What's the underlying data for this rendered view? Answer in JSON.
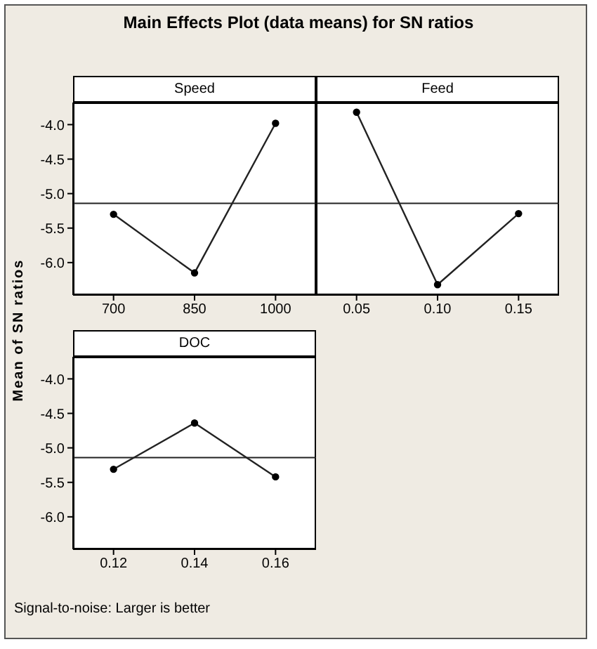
{
  "chart_data": [
    {
      "type": "line",
      "title": "Main Effects Plot (data means) for SN ratios",
      "subtitle": "Speed",
      "ylabel": "Mean of SN ratios",
      "categories": [
        "700",
        "850",
        "1000"
      ],
      "series": [
        {
          "color": "#222222",
          "values": [
            -5.3,
            -6.15,
            -3.98
          ]
        }
      ],
      "ylim": [
        -6.47,
        -3.68
      ],
      "yticks": [
        {
          "value": -4,
          "label": "-4.0"
        },
        {
          "value": -4.5,
          "label": "-4.5"
        },
        {
          "value": -5,
          "label": "-5.0"
        },
        {
          "value": -5.5,
          "label": "-5.5"
        },
        {
          "value": -6,
          "label": "-6.0"
        }
      ],
      "ref_lines": [
        {
          "axis": "y",
          "value": -5.14,
          "color": "#222222"
        }
      ],
      "marker": "circle",
      "grid": false,
      "legend": false
    },
    {
      "type": "line",
      "subtitle": "Feed",
      "categories": [
        "0.05",
        "0.10",
        "0.15"
      ],
      "series": [
        {
          "color": "#222222",
          "values": [
            -3.82,
            -6.32,
            -5.29
          ]
        }
      ],
      "ylim": [
        -6.47,
        -3.68
      ],
      "ref_lines": [
        {
          "axis": "y",
          "value": -5.14,
          "color": "#222222"
        }
      ],
      "marker": "circle",
      "grid": false,
      "legend": false,
      "tick_labels": "x"
    },
    {
      "type": "line",
      "subtitle": "DOC",
      "categories": [
        "0.12",
        "0.14",
        "0.16"
      ],
      "series": [
        {
          "color": "#222222",
          "values": [
            -5.31,
            -4.64,
            -5.42
          ]
        }
      ],
      "ylim": [
        -6.47,
        -3.68
      ],
      "yticks": [
        {
          "value": -4,
          "label": "-4.0"
        },
        {
          "value": -4.5,
          "label": "-4.5"
        },
        {
          "value": -5,
          "label": "-5.0"
        },
        {
          "value": -5.5,
          "label": "-5.5"
        },
        {
          "value": -6,
          "label": "-6.0"
        }
      ],
      "ref_lines": [
        {
          "axis": "y",
          "value": -5.14,
          "color": "#222222"
        }
      ],
      "marker": "circle",
      "grid": false,
      "legend": false,
      "annotations": [
        "Signal-to-noise: Larger is better"
      ]
    }
  ]
}
